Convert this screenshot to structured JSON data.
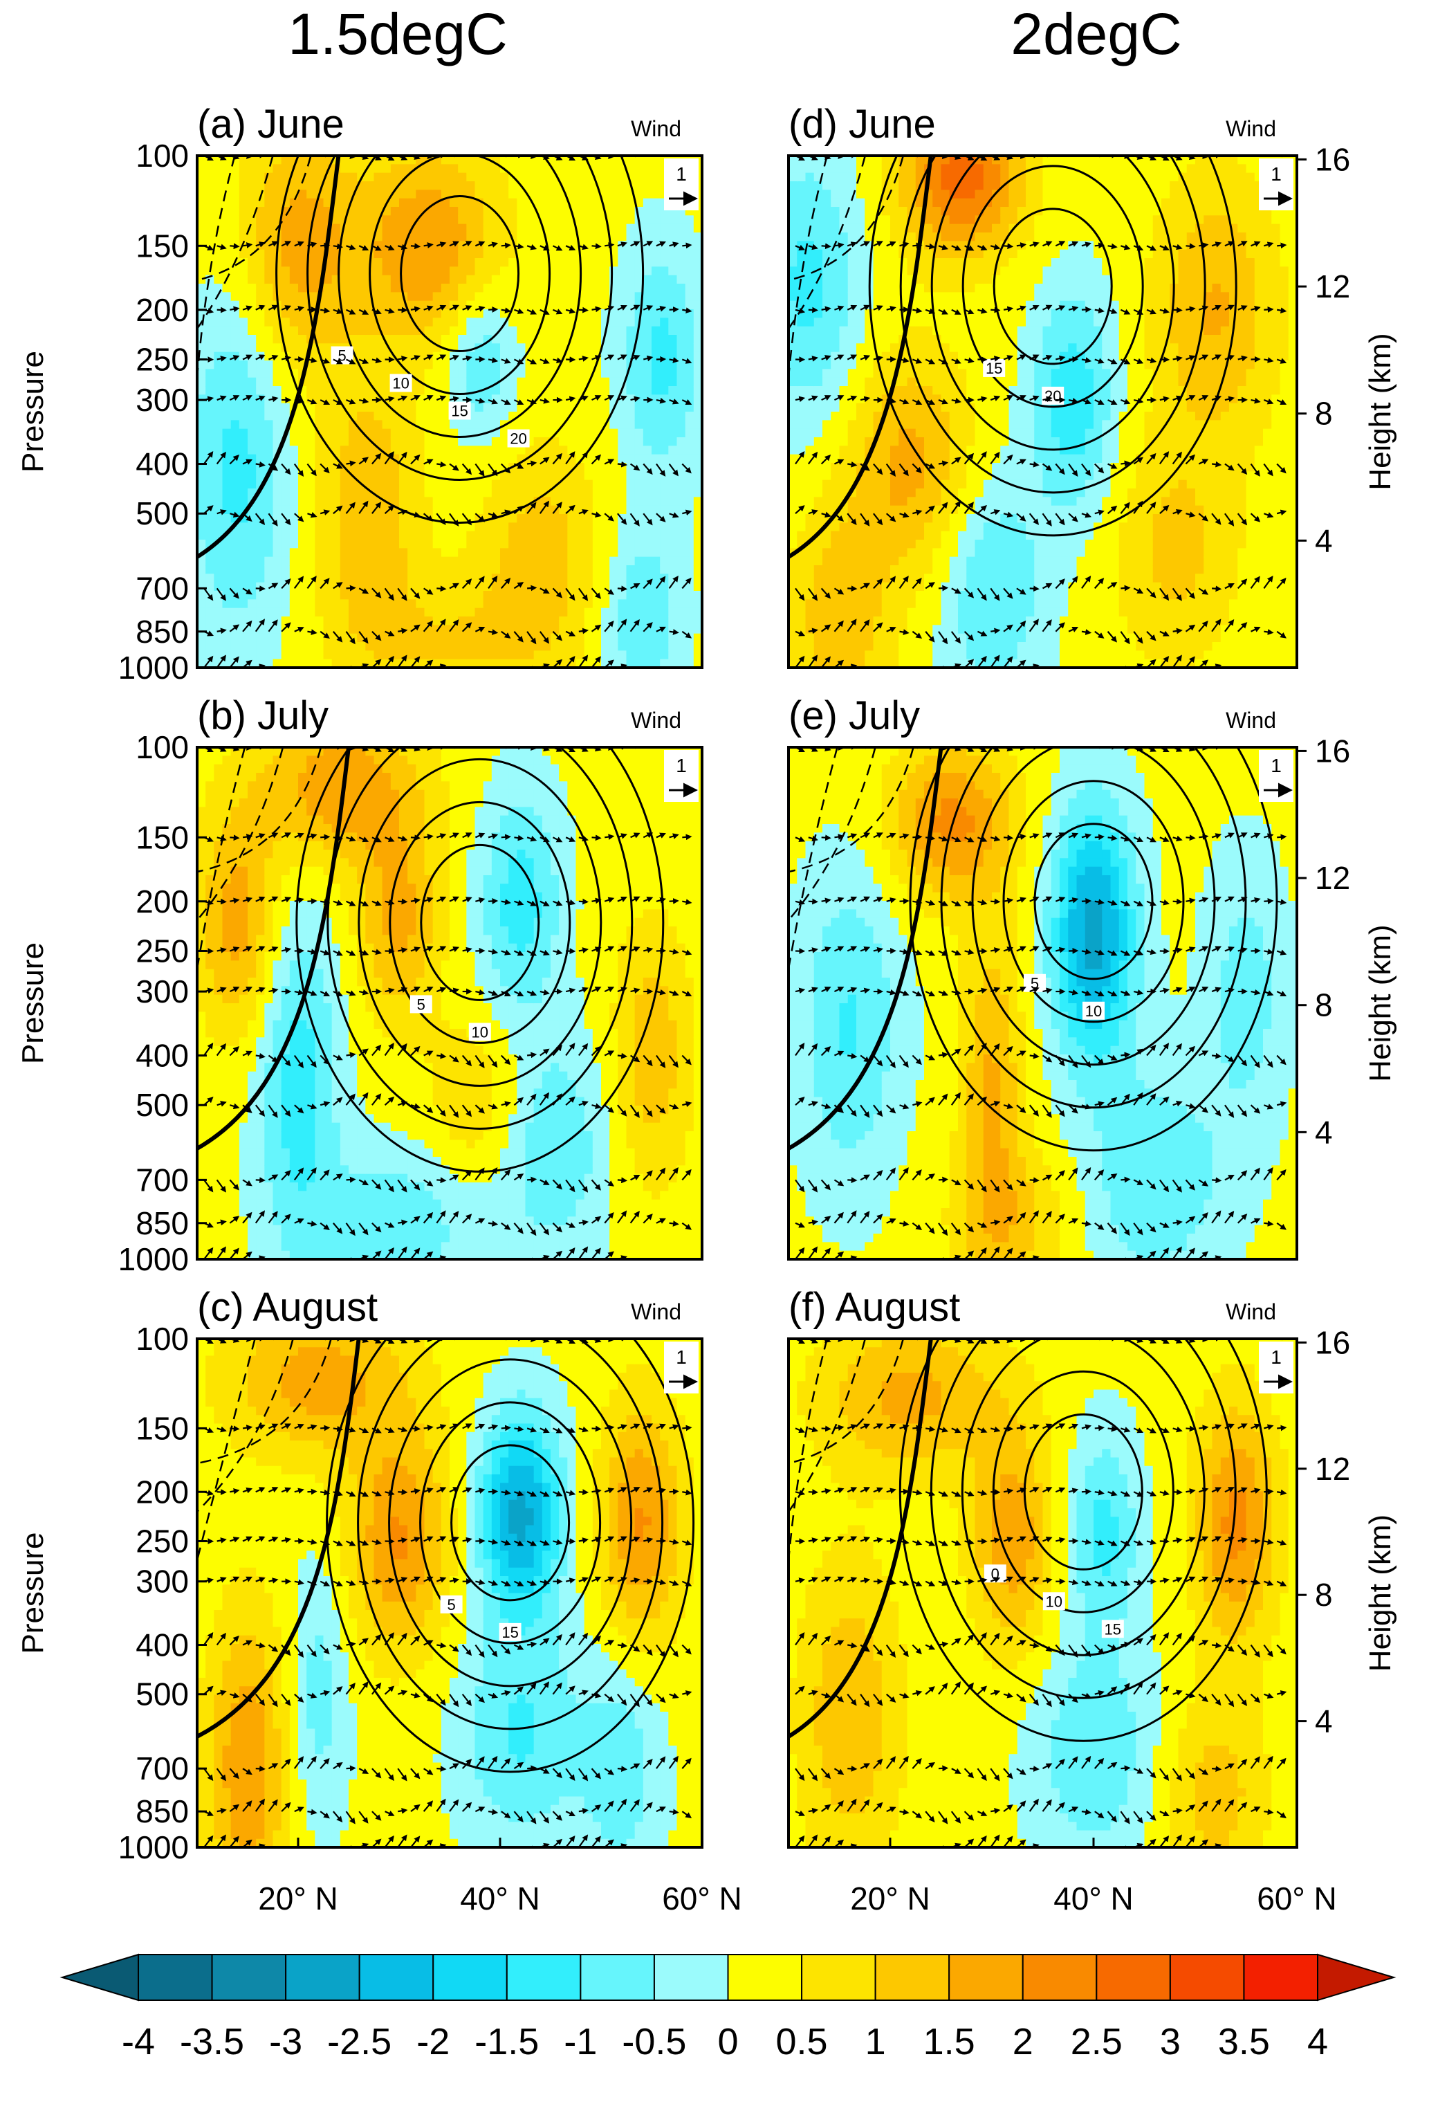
{
  "columns": [
    "1.5degC",
    "2degC"
  ],
  "colorbar": {
    "levels": [
      "-4",
      "-3.5",
      "-3",
      "-2.5",
      "-2",
      "-1.5",
      "-1",
      "-0.5",
      "0",
      "0.5",
      "1",
      "1.5",
      "2",
      "2.5",
      "3",
      "3.5",
      "4"
    ],
    "colors": [
      "#0b6e8c",
      "#0e88a8",
      "#0aa3c8",
      "#08bde6",
      "#11d9f5",
      "#32eefc",
      "#66f5fc",
      "#9bfbfc",
      "#fdfd00",
      "#fde400",
      "#fdc800",
      "#fba800",
      "#f98a00",
      "#f76a00",
      "#f54b00",
      "#f32000"
    ],
    "under_color": "#0a5a73",
    "over_color": "#c41a00"
  },
  "chart_data": [
    {
      "type": "heatmap",
      "label": "(a)",
      "month": "June",
      "column": "1.5degC",
      "wind_label": "Wind",
      "ref_vector": "1",
      "ylabel": "Pressure",
      "yticks": [
        "100",
        "150",
        "200",
        "250",
        "300",
        "400",
        "500",
        "700",
        "850",
        "1000"
      ],
      "contour_labels": [
        "5",
        "10",
        "15",
        "20"
      ],
      "shading_range": [
        -1.5,
        2
      ]
    },
    {
      "type": "heatmap",
      "label": "(b)",
      "month": "July",
      "column": "1.5degC",
      "wind_label": "Wind",
      "ref_vector": "1",
      "ylabel": "Pressure",
      "yticks": [
        "100",
        "150",
        "200",
        "250",
        "300",
        "400",
        "500",
        "700",
        "850",
        "1000"
      ],
      "contour_labels": [
        "5",
        "10"
      ],
      "shading_range": [
        -1.5,
        2
      ]
    },
    {
      "type": "heatmap",
      "label": "(c)",
      "month": "August",
      "column": "1.5degC",
      "wind_label": "Wind",
      "ref_vector": "1",
      "ylabel": "Pressure",
      "yticks": [
        "100",
        "150",
        "200",
        "250",
        "300",
        "400",
        "500",
        "700",
        "850",
        "1000"
      ],
      "contour_labels": [
        "5",
        "15"
      ],
      "shading_range": [
        -3,
        2
      ]
    },
    {
      "type": "heatmap",
      "label": "(d)",
      "month": "June",
      "column": "2degC",
      "wind_label": "Wind",
      "ref_vector": "1",
      "y2label": "Height (km)",
      "y2ticks": [
        "16",
        "12",
        "8",
        "4"
      ],
      "contour_labels": [
        "15",
        "20"
      ],
      "shading_range": [
        -1.5,
        3
      ]
    },
    {
      "type": "heatmap",
      "label": "(e)",
      "month": "July",
      "column": "2degC",
      "wind_label": "Wind",
      "ref_vector": "1",
      "y2label": "Height (km)",
      "y2ticks": [
        "16",
        "12",
        "8",
        "4"
      ],
      "contour_labels": [
        "5",
        "10"
      ],
      "shading_range": [
        -3,
        2
      ]
    },
    {
      "type": "heatmap",
      "label": "(f)",
      "month": "August",
      "column": "2degC",
      "wind_label": "Wind",
      "ref_vector": "1",
      "y2label": "Height (km)",
      "y2ticks": [
        "16",
        "12",
        "8",
        "4"
      ],
      "contour_labels": [
        "0",
        "10",
        "15"
      ],
      "shading_range": [
        -1.5,
        2
      ]
    }
  ],
  "xticks": [
    "20° N",
    "40° N",
    "60° N"
  ]
}
